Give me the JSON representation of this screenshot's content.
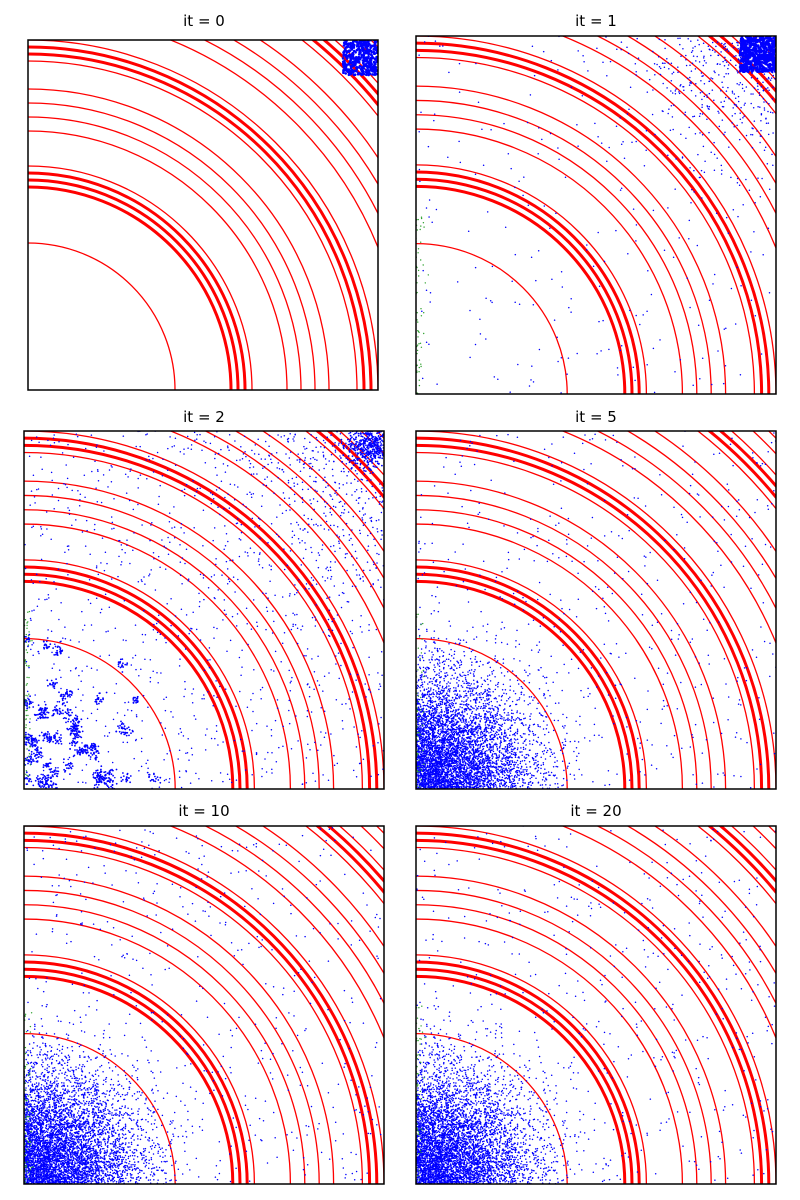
{
  "figure": {
    "colors": {
      "contours": "#ff0000",
      "points_main": "#0000ff",
      "points_spill": "#2ca02c",
      "frame": "#000000",
      "background": "#ffffff"
    },
    "panels": [
      {
        "title": "it = 0"
      },
      {
        "title": "it = 1"
      },
      {
        "title": "it = 2"
      },
      {
        "title": "it = 5"
      },
      {
        "title": "it = 10"
      },
      {
        "title": "it = 20"
      }
    ]
  },
  "chart_data": [
    {
      "type": "scatter",
      "title": "it = 0",
      "xlabel": "",
      "ylabel": "",
      "ticks_visible": false,
      "grid": false,
      "xlim": [
        0,
        1
      ],
      "ylim": [
        0,
        1
      ],
      "contour_radii": [
        0.42,
        0.58,
        0.6,
        0.62,
        0.64,
        0.74,
        0.78,
        0.82,
        0.86,
        0.94,
        0.96,
        0.98,
        1.0,
        1.08,
        1.12,
        1.16,
        1.2,
        1.27,
        1.29,
        1.31,
        1.33,
        1.37,
        1.4
      ],
      "distribution": "uniform square",
      "center": [
        0.95,
        0.95
      ],
      "spread": 0.05
    },
    {
      "type": "scatter",
      "title": "it = 1",
      "xlabel": "",
      "ylabel": "",
      "ticks_visible": false,
      "grid": false,
      "xlim": [
        0,
        1
      ],
      "ylim": [
        0,
        1
      ],
      "contour_radii": [
        0.42,
        0.58,
        0.6,
        0.62,
        0.64,
        0.74,
        0.78,
        0.82,
        0.86,
        0.94,
        0.96,
        0.98,
        1.0,
        1.08,
        1.12,
        1.16,
        1.2,
        1.27,
        1.29,
        1.31,
        1.33,
        1.37,
        1.4
      ],
      "distribution": "mostly concentrated near the top-right, sparse scatter elsewhere",
      "center": [
        0.95,
        0.95
      ],
      "spread": 0.07
    },
    {
      "type": "scatter",
      "title": "it = 2",
      "xlabel": "",
      "ylabel": "",
      "ticks_visible": false,
      "grid": false,
      "xlim": [
        0,
        1
      ],
      "ylim": [
        0,
        1
      ],
      "contour_radii": [
        0.42,
        0.58,
        0.6,
        0.62,
        0.64,
        0.74,
        0.78,
        0.82,
        0.86,
        0.94,
        0.96,
        0.98,
        1.0,
        1.08,
        1.12,
        1.16,
        1.2,
        1.27,
        1.29,
        1.31,
        1.33,
        1.37,
        1.4
      ],
      "distribution": "clumped clusters near origin plus a dense patch at top-right",
      "center": [
        0.97,
        0.97
      ],
      "spread": 0.05
    },
    {
      "type": "scatter",
      "title": "it = 5",
      "xlabel": "",
      "ylabel": "",
      "ticks_visible": false,
      "grid": false,
      "xlim": [
        0,
        1
      ],
      "ylim": [
        0,
        1
      ],
      "contour_radii": [
        0.42,
        0.58,
        0.6,
        0.62,
        0.64,
        0.74,
        0.78,
        0.82,
        0.86,
        0.94,
        0.96,
        0.98,
        1.0,
        1.08,
        1.12,
        1.16,
        1.2,
        1.27,
        1.29,
        1.31,
        1.33,
        1.37,
        1.4
      ],
      "distribution": "dense cloud near origin",
      "center": [
        0.1,
        0.1
      ],
      "spread": 0.15
    },
    {
      "type": "scatter",
      "title": "it = 10",
      "xlabel": "",
      "ylabel": "",
      "ticks_visible": false,
      "grid": false,
      "xlim": [
        0,
        1
      ],
      "ylim": [
        0,
        1
      ],
      "contour_radii": [
        0.42,
        0.58,
        0.6,
        0.62,
        0.64,
        0.74,
        0.78,
        0.82,
        0.86,
        0.94,
        0.96,
        0.98,
        1.0,
        1.08,
        1.12,
        1.16,
        1.2,
        1.27,
        1.29,
        1.31,
        1.33,
        1.37,
        1.4
      ],
      "distribution": "dense cloud near origin",
      "center": [
        0.1,
        0.1
      ],
      "spread": 0.15
    },
    {
      "type": "scatter",
      "title": "it = 20",
      "xlabel": "",
      "ylabel": "",
      "ticks_visible": false,
      "grid": false,
      "xlim": [
        0,
        1
      ],
      "ylim": [
        0,
        1
      ],
      "contour_radii": [
        0.42,
        0.58,
        0.6,
        0.62,
        0.64,
        0.74,
        0.78,
        0.82,
        0.86,
        0.94,
        0.96,
        0.98,
        1.0,
        1.08,
        1.12,
        1.16,
        1.2,
        1.27,
        1.29,
        1.31,
        1.33,
        1.37,
        1.4
      ],
      "distribution": "dense cloud near origin",
      "center": [
        0.1,
        0.1
      ],
      "spread": 0.15
    }
  ]
}
